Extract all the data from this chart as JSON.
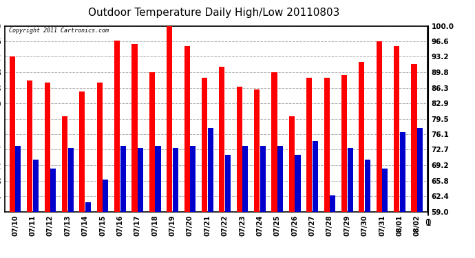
{
  "title": "Outdoor Temperature Daily High/Low 20110803",
  "copyright": "Copyright 2011 Cartronics.com",
  "dates": [
    "07/10",
    "07/11",
    "07/12",
    "07/13",
    "07/14",
    "07/15",
    "07/16",
    "07/17",
    "07/18",
    "07/19",
    "07/20",
    "07/21",
    "07/22",
    "07/23",
    "07/24",
    "07/25",
    "07/26",
    "07/27",
    "07/28",
    "07/29",
    "07/30",
    "07/31",
    "08/01",
    "08/02"
  ],
  "highs": [
    93.2,
    88.0,
    87.5,
    80.0,
    85.5,
    87.5,
    96.8,
    96.0,
    89.8,
    100.0,
    95.5,
    88.5,
    91.0,
    86.5,
    86.0,
    89.8,
    80.0,
    88.5,
    88.5,
    89.2,
    92.0,
    96.6,
    95.5,
    91.5
  ],
  "lows": [
    73.5,
    70.5,
    68.5,
    73.0,
    61.0,
    66.0,
    73.5,
    73.0,
    73.5,
    73.0,
    73.5,
    77.5,
    71.5,
    73.5,
    73.5,
    73.5,
    71.5,
    74.5,
    62.5,
    73.0,
    70.5,
    68.5,
    76.5,
    77.5
  ],
  "high_color": "#ff0000",
  "low_color": "#0000cc",
  "bg_color": "#ffffff",
  "plot_bg_color": "#ffffff",
  "grid_color": "#b0b0b0",
  "title_fontsize": 11,
  "ymin": 59.0,
  "ymax": 100.0,
  "yticks": [
    59.0,
    62.4,
    65.8,
    69.2,
    72.7,
    76.1,
    79.5,
    82.9,
    86.3,
    89.8,
    93.2,
    96.6,
    100.0
  ]
}
